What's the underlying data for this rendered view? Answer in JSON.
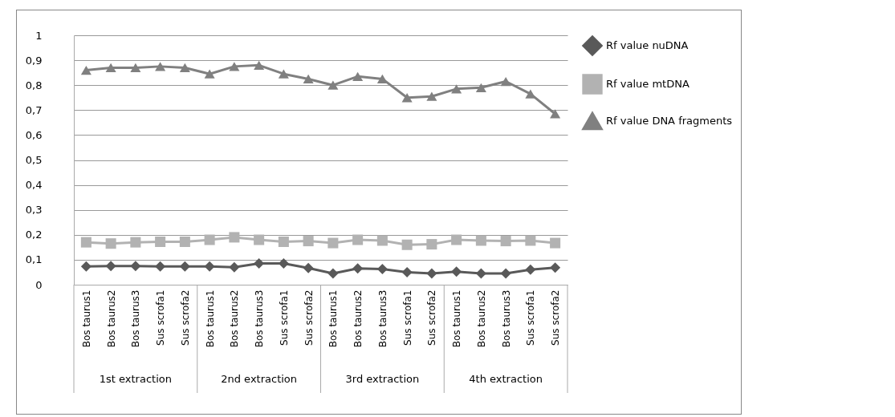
{
  "chart_data": {
    "type": "line",
    "categories": [
      "Bos taurus1",
      "Bos taurus2",
      "Bos taurus3",
      "Sus scrofa1",
      "Sus scrofa2",
      "Bos taurus1",
      "Bos taurus2",
      "Bos taurus3",
      "Sus scrofa1",
      "Sus scrofa2",
      "Bos taurus1",
      "Bos taurus2",
      "Bos taurus3",
      "Sus scrofa1",
      "Sus scrofa2",
      "Bos taurus1",
      "Bos taurus2",
      "Bos taurus3",
      "Sus scrofa1",
      "Sus scrofa2"
    ],
    "series": [
      {
        "name": "Rf value nuDNA",
        "color": "#595959",
        "marker": "diamond",
        "values": [
          0.073,
          0.075,
          0.075,
          0.073,
          0.073,
          0.073,
          0.07,
          0.085,
          0.085,
          0.067,
          0.045,
          0.065,
          0.063,
          0.05,
          0.045,
          0.052,
          0.045,
          0.045,
          0.06,
          0.068
        ]
      },
      {
        "name": "Rf value mtDNA",
        "color": "#b2b2b2",
        "marker": "square",
        "values": [
          0.17,
          0.165,
          0.17,
          0.172,
          0.172,
          0.18,
          0.19,
          0.18,
          0.172,
          0.175,
          0.167,
          0.18,
          0.177,
          0.16,
          0.162,
          0.18,
          0.177,
          0.175,
          0.177,
          0.167
        ]
      },
      {
        "name": "Rf value DNA fragments",
        "color": "#808080",
        "marker": "triangle",
        "values": [
          0.86,
          0.87,
          0.87,
          0.875,
          0.87,
          0.845,
          0.875,
          0.88,
          0.845,
          0.825,
          0.8,
          0.835,
          0.825,
          0.75,
          0.755,
          0.785,
          0.79,
          0.815,
          0.765,
          0.685
        ]
      }
    ],
    "ylim": [
      0,
      1
    ],
    "yticks": [
      0,
      {
        "value": 0.1,
        "label": "0,1"
      },
      {
        "value": 0.2,
        "label": "0,2"
      },
      {
        "value": 0.3,
        "label": "0,3"
      },
      {
        "value": 0.4,
        "label": "0,4"
      },
      {
        "value": 0.5,
        "label": "0,5"
      },
      {
        "value": 0.6,
        "label": "0,6"
      },
      {
        "value": 0.7,
        "label": "0,7"
      },
      {
        "value": 0.8,
        "label": "0,8"
      },
      {
        "value": 0.9,
        "label": "0,9"
      },
      1
    ],
    "grid": "y",
    "legend": "right",
    "line_style": "solid",
    "annotations": [
      "1st extraction",
      "2nd extraction",
      "3rd extraction",
      "4th extraction"
    ]
  }
}
